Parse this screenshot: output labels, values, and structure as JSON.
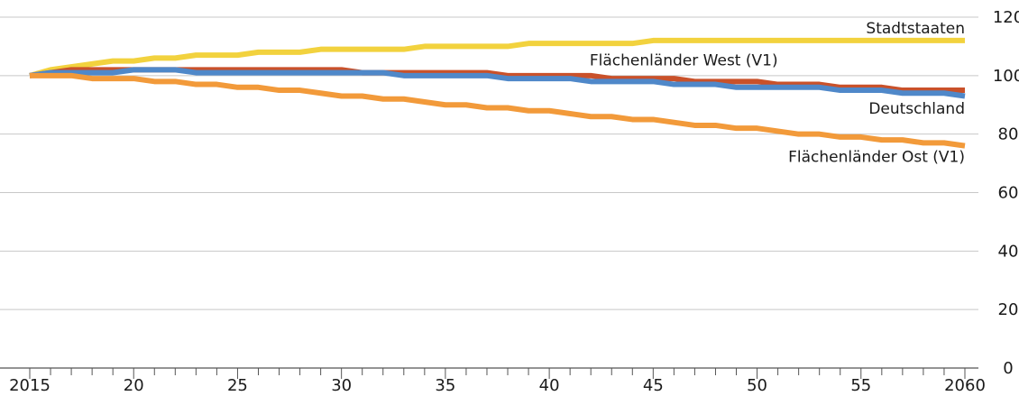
{
  "chart_data": {
    "type": "line",
    "title": "",
    "xlabel": "",
    "ylabel": "",
    "xlim": [
      2015,
      2060
    ],
    "ylim": [
      0,
      120
    ],
    "y_axis_position": "right",
    "grid": "horizontal",
    "x": [
      2015,
      2016,
      2017,
      2018,
      2019,
      2020,
      2021,
      2022,
      2023,
      2024,
      2025,
      2026,
      2027,
      2028,
      2029,
      2030,
      2031,
      2032,
      2033,
      2034,
      2035,
      2036,
      2037,
      2038,
      2039,
      2040,
      2041,
      2042,
      2043,
      2044,
      2045,
      2046,
      2047,
      2048,
      2049,
      2050,
      2051,
      2052,
      2053,
      2054,
      2055,
      2056,
      2057,
      2058,
      2059,
      2060
    ],
    "x_tick_labels": [
      {
        "x": 2015,
        "label": "2015"
      },
      {
        "x": 2020,
        "label": "20"
      },
      {
        "x": 2025,
        "label": "25"
      },
      {
        "x": 2030,
        "label": "30"
      },
      {
        "x": 2035,
        "label": "35"
      },
      {
        "x": 2040,
        "label": "40"
      },
      {
        "x": 2045,
        "label": "45"
      },
      {
        "x": 2050,
        "label": "50"
      },
      {
        "x": 2055,
        "label": "55"
      },
      {
        "x": 2060,
        "label": "2060"
      }
    ],
    "y_ticks": [
      0,
      20,
      40,
      60,
      80,
      100,
      120
    ],
    "series": [
      {
        "name": "Stadtstaaten",
        "color": "#f2d23e",
        "values": [
          100,
          102,
          103,
          104,
          105,
          105,
          106,
          106,
          107,
          107,
          107,
          108,
          108,
          108,
          109,
          109,
          109,
          109,
          109,
          110,
          110,
          110,
          110,
          110,
          111,
          111,
          111,
          111,
          111,
          111,
          112,
          112,
          112,
          112,
          112,
          112,
          112,
          112,
          112,
          112,
          112,
          112,
          112,
          112,
          112,
          112
        ]
      },
      {
        "name": "Flächenländer West (V1)",
        "color": "#c9512a",
        "values": [
          100,
          101,
          102,
          102,
          102,
          102,
          102,
          102,
          102,
          102,
          102,
          102,
          102,
          102,
          102,
          102,
          101,
          101,
          101,
          101,
          101,
          101,
          101,
          100,
          100,
          100,
          100,
          100,
          99,
          99,
          99,
          99,
          98,
          98,
          98,
          98,
          97,
          97,
          97,
          96,
          96,
          96,
          95,
          95,
          95,
          95
        ]
      },
      {
        "name": "Deutschland",
        "color": "#4f88c9",
        "values": [
          100,
          101,
          101,
          101,
          101,
          102,
          102,
          102,
          101,
          101,
          101,
          101,
          101,
          101,
          101,
          101,
          101,
          101,
          100,
          100,
          100,
          100,
          100,
          99,
          99,
          99,
          99,
          98,
          98,
          98,
          98,
          97,
          97,
          97,
          96,
          96,
          96,
          96,
          96,
          95,
          95,
          95,
          94,
          94,
          94,
          93
        ]
      },
      {
        "name": "Flächenländer Ost (V1)",
        "color": "#f29a3a",
        "values": [
          100,
          100,
          100,
          99,
          99,
          99,
          98,
          98,
          97,
          97,
          96,
          96,
          95,
          95,
          94,
          93,
          93,
          92,
          92,
          91,
          90,
          90,
          89,
          89,
          88,
          88,
          87,
          86,
          86,
          85,
          85,
          84,
          83,
          83,
          82,
          82,
          81,
          80,
          80,
          79,
          79,
          78,
          78,
          77,
          77,
          76
        ]
      }
    ],
    "series_labels": [
      {
        "text": "Stadtstaaten",
        "anchor_x": 2060,
        "anchor_y": 114.5,
        "align": "end"
      },
      {
        "text": "Flächenländer West (V1)",
        "anchor_x": 2051,
        "anchor_y": 103.5,
        "align": "end"
      },
      {
        "text": "Deutschland",
        "anchor_x": 2060,
        "anchor_y": 87,
        "align": "end"
      },
      {
        "text": "Flächenländer Ost (V1)",
        "anchor_x": 2060,
        "anchor_y": 70.5,
        "align": "end"
      }
    ]
  }
}
